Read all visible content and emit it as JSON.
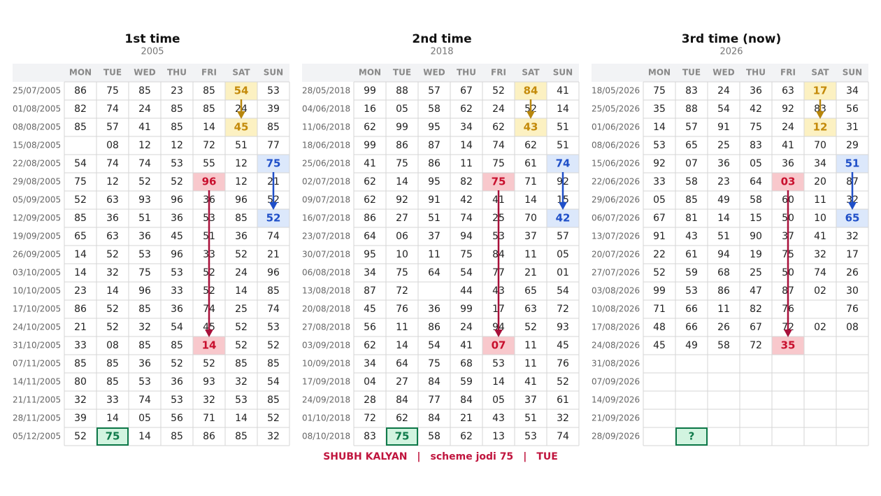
{
  "days": [
    "MON",
    "TUE",
    "WED",
    "THU",
    "FRI",
    "SAT",
    "SUN"
  ],
  "panels": [
    {
      "title": "1st time",
      "subtitle": "2005",
      "rows": [
        {
          "date": "25/07/2005",
          "cells": [
            "86",
            "75",
            "85",
            "23",
            "85",
            "54",
            "53"
          ]
        },
        {
          "date": "01/08/2005",
          "cells": [
            "82",
            "74",
            "24",
            "85",
            "85",
            "24",
            "39"
          ]
        },
        {
          "date": "08/08/2005",
          "cells": [
            "85",
            "57",
            "41",
            "85",
            "14",
            "45",
            "85"
          ]
        },
        {
          "date": "15/08/2005",
          "cells": [
            null,
            "08",
            "12",
            "12",
            "72",
            "51",
            "77"
          ]
        },
        {
          "date": "22/08/2005",
          "cells": [
            "54",
            "74",
            "74",
            "53",
            "55",
            "12",
            "75"
          ]
        },
        {
          "date": "29/08/2005",
          "cells": [
            "75",
            "12",
            "52",
            "52",
            "96",
            "12",
            "21"
          ]
        },
        {
          "date": "05/09/2005",
          "cells": [
            "52",
            "63",
            "93",
            "96",
            "36",
            "96",
            "52"
          ]
        },
        {
          "date": "12/09/2005",
          "cells": [
            "85",
            "36",
            "51",
            "36",
            "53",
            "85",
            "52"
          ]
        },
        {
          "date": "19/09/2005",
          "cells": [
            "65",
            "63",
            "36",
            "45",
            "51",
            "36",
            "74"
          ]
        },
        {
          "date": "26/09/2005",
          "cells": [
            "14",
            "52",
            "53",
            "96",
            "33",
            "52",
            "21"
          ]
        },
        {
          "date": "03/10/2005",
          "cells": [
            "14",
            "32",
            "75",
            "53",
            "52",
            "24",
            "96"
          ]
        },
        {
          "date": "10/10/2005",
          "cells": [
            "23",
            "14",
            "96",
            "33",
            "52",
            "14",
            "85"
          ]
        },
        {
          "date": "17/10/2005",
          "cells": [
            "86",
            "52",
            "85",
            "36",
            "74",
            "25",
            "74"
          ]
        },
        {
          "date": "24/10/2005",
          "cells": [
            "21",
            "52",
            "32",
            "54",
            "45",
            "52",
            "53"
          ]
        },
        {
          "date": "31/10/2005",
          "cells": [
            "33",
            "08",
            "85",
            "85",
            "14",
            "52",
            "52"
          ]
        },
        {
          "date": "07/11/2005",
          "cells": [
            "85",
            "85",
            "36",
            "52",
            "52",
            "85",
            "85"
          ]
        },
        {
          "date": "14/11/2005",
          "cells": [
            "80",
            "85",
            "53",
            "36",
            "93",
            "32",
            "54"
          ]
        },
        {
          "date": "21/11/2005",
          "cells": [
            "32",
            "33",
            "74",
            "53",
            "32",
            "53",
            "85"
          ]
        },
        {
          "date": "28/11/2005",
          "cells": [
            "39",
            "14",
            "05",
            "56",
            "71",
            "14",
            "52"
          ]
        },
        {
          "date": "05/12/2005",
          "cells": [
            "52",
            "75",
            "14",
            "85",
            "86",
            "85",
            "32"
          ]
        }
      ]
    },
    {
      "title": "2nd time",
      "subtitle": "2018",
      "rows": [
        {
          "date": "28/05/2018",
          "cells": [
            "99",
            "88",
            "57",
            "67",
            "52",
            "84",
            "41"
          ]
        },
        {
          "date": "04/06/2018",
          "cells": [
            "16",
            "05",
            "58",
            "62",
            "24",
            "52",
            "14"
          ]
        },
        {
          "date": "11/06/2018",
          "cells": [
            "62",
            "99",
            "95",
            "34",
            "62",
            "43",
            "51"
          ]
        },
        {
          "date": "18/06/2018",
          "cells": [
            "99",
            "86",
            "87",
            "14",
            "74",
            "62",
            "51"
          ]
        },
        {
          "date": "25/06/2018",
          "cells": [
            "41",
            "75",
            "86",
            "11",
            "75",
            "61",
            "74"
          ]
        },
        {
          "date": "02/07/2018",
          "cells": [
            "62",
            "14",
            "95",
            "82",
            "75",
            "71",
            "92"
          ]
        },
        {
          "date": "09/07/2018",
          "cells": [
            "62",
            "92",
            "91",
            "42",
            "41",
            "14",
            "15"
          ]
        },
        {
          "date": "16/07/2018",
          "cells": [
            "86",
            "27",
            "51",
            "74",
            "25",
            "70",
            "42"
          ]
        },
        {
          "date": "23/07/2018",
          "cells": [
            "64",
            "06",
            "37",
            "94",
            "53",
            "37",
            "57"
          ]
        },
        {
          "date": "30/07/2018",
          "cells": [
            "95",
            "10",
            "11",
            "75",
            "84",
            "11",
            "05"
          ]
        },
        {
          "date": "06/08/2018",
          "cells": [
            "34",
            "75",
            "64",
            "54",
            "77",
            "21",
            "01"
          ]
        },
        {
          "date": "13/08/2018",
          "cells": [
            "87",
            "72",
            null,
            "44",
            "43",
            "65",
            "54"
          ]
        },
        {
          "date": "20/08/2018",
          "cells": [
            "45",
            "76",
            "36",
            "99",
            "17",
            "63",
            "72"
          ]
        },
        {
          "date": "27/08/2018",
          "cells": [
            "56",
            "11",
            "86",
            "24",
            "94",
            "52",
            "93"
          ]
        },
        {
          "date": "03/09/2018",
          "cells": [
            "62",
            "14",
            "54",
            "41",
            "07",
            "11",
            "45"
          ]
        },
        {
          "date": "10/09/2018",
          "cells": [
            "34",
            "64",
            "75",
            "68",
            "53",
            "11",
            "76"
          ]
        },
        {
          "date": "17/09/2018",
          "cells": [
            "04",
            "27",
            "84",
            "59",
            "14",
            "41",
            "52"
          ]
        },
        {
          "date": "24/09/2018",
          "cells": [
            "28",
            "84",
            "77",
            "84",
            "05",
            "37",
            "61"
          ]
        },
        {
          "date": "01/10/2018",
          "cells": [
            "72",
            "62",
            "84",
            "21",
            "43",
            "51",
            "32"
          ]
        },
        {
          "date": "08/10/2018",
          "cells": [
            "83",
            "75",
            "58",
            "62",
            "13",
            "53",
            "74"
          ]
        }
      ]
    },
    {
      "title": "3rd time  (now)",
      "subtitle": "2026",
      "rows": [
        {
          "date": "18/05/2026",
          "cells": [
            "75",
            "83",
            "24",
            "36",
            "63",
            "17",
            "34"
          ]
        },
        {
          "date": "25/05/2026",
          "cells": [
            "35",
            "88",
            "54",
            "42",
            "92",
            "83",
            "56"
          ]
        },
        {
          "date": "01/06/2026",
          "cells": [
            "14",
            "57",
            "91",
            "75",
            "24",
            "12",
            "31"
          ]
        },
        {
          "date": "08/06/2026",
          "cells": [
            "53",
            "65",
            "25",
            "83",
            "41",
            "70",
            "29"
          ]
        },
        {
          "date": "15/06/2026",
          "cells": [
            "92",
            "07",
            "36",
            "05",
            "36",
            "34",
            "51"
          ]
        },
        {
          "date": "22/06/2026",
          "cells": [
            "33",
            "58",
            "23",
            "64",
            "03",
            "20",
            "87"
          ]
        },
        {
          "date": "29/06/2026",
          "cells": [
            "05",
            "85",
            "49",
            "58",
            "60",
            "11",
            "32"
          ]
        },
        {
          "date": "06/07/2026",
          "cells": [
            "67",
            "81",
            "14",
            "15",
            "50",
            "10",
            "65"
          ]
        },
        {
          "date": "13/07/2026",
          "cells": [
            "91",
            "43",
            "51",
            "90",
            "37",
            "41",
            "32"
          ]
        },
        {
          "date": "20/07/2026",
          "cells": [
            "22",
            "61",
            "94",
            "19",
            "75",
            "32",
            "17"
          ]
        },
        {
          "date": "27/07/2026",
          "cells": [
            "52",
            "59",
            "68",
            "25",
            "50",
            "74",
            "26"
          ]
        },
        {
          "date": "03/08/2026",
          "cells": [
            "99",
            "53",
            "86",
            "47",
            "87",
            "02",
            "30"
          ]
        },
        {
          "date": "10/08/2026",
          "cells": [
            "71",
            "66",
            "11",
            "82",
            "76",
            null,
            "76"
          ]
        },
        {
          "date": "17/08/2026",
          "cells": [
            "48",
            "66",
            "26",
            "67",
            "72",
            "02",
            "08"
          ]
        },
        {
          "date": "24/08/2026",
          "cells": [
            "45",
            "49",
            "58",
            "72",
            "35",
            null,
            null
          ]
        },
        {
          "date": "31/08/2026",
          "cells": [
            null,
            null,
            null,
            null,
            null,
            null,
            null
          ]
        },
        {
          "date": "07/09/2026",
          "cells": [
            null,
            null,
            null,
            null,
            null,
            null,
            null
          ]
        },
        {
          "date": "14/09/2026",
          "cells": [
            null,
            null,
            null,
            null,
            null,
            null,
            null
          ]
        },
        {
          "date": "21/09/2026",
          "cells": [
            null,
            null,
            null,
            null,
            null,
            null,
            null
          ]
        },
        {
          "date": "28/09/2026",
          "cells": [
            null,
            "?",
            null,
            null,
            null,
            null,
            null
          ]
        }
      ]
    }
  ],
  "footer": {
    "parts": [
      "SHUBH KALYAN",
      "scheme jodi 75",
      "TUE"
    ],
    "separator": "|"
  }
}
